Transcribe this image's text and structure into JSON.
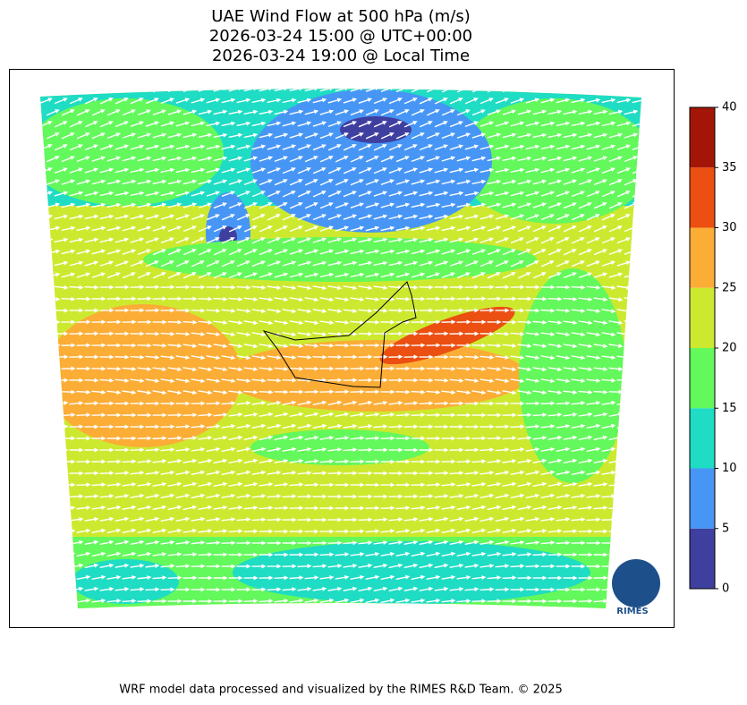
{
  "header": {
    "title_lines": [
      "UAE Wind Flow at 500 hPa (m/s)",
      "2026-03-24 15:00 @ UTC+00:00",
      "2026-03-24 19:00 @ Local Time"
    ]
  },
  "colorbar": {
    "ticks": [
      0,
      5,
      10,
      15,
      20,
      25,
      30,
      35,
      40
    ],
    "colors": [
      "#3f3fa0",
      "#4796f5",
      "#1fdcc4",
      "#63f85b",
      "#cde92f",
      "#fbad36",
      "#eb4f12",
      "#a31607"
    ]
  },
  "logo_text": "RIMES",
  "footer": "WRF model data processed and visualized by the RIMES R&D Team. © 2025"
}
